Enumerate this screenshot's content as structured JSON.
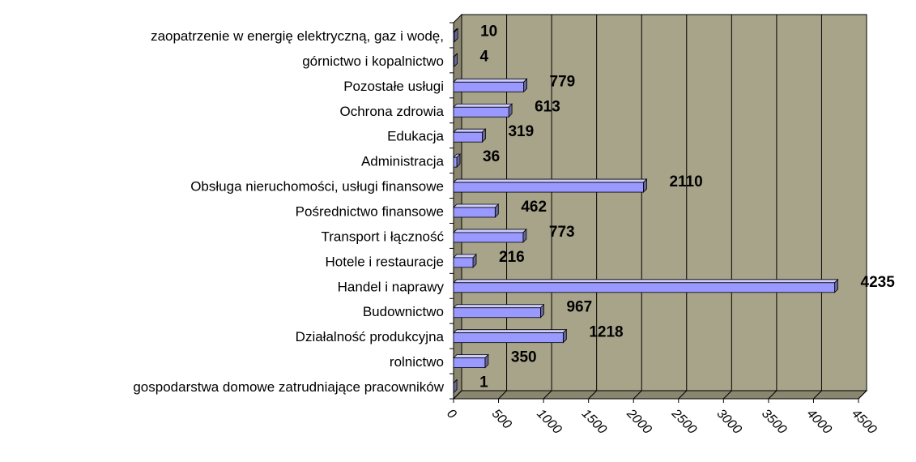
{
  "chart_data": {
    "type": "bar3d_horizontal",
    "categories": [
      "zaopatrzenie w energię elektryczną, gaz i wodę,",
      "górnictwo i kopalnictwo",
      "Pozostałe usługi",
      "Ochrona zdrowia",
      "Edukacja",
      "Administracja",
      "Obsługa nieruchomości, usługi finansowe",
      "Pośrednictwo finansowe",
      "Transport i łączność",
      "Hotele i restauracje",
      "Handel i naprawy",
      "Budownictwo",
      "Działalność produkcyjna",
      "rolnictwo",
      "gospodarstwa domowe zatrudniające pracowników"
    ],
    "values": [
      10,
      4,
      779,
      613,
      319,
      36,
      2110,
      462,
      773,
      216,
      4235,
      967,
      1218,
      350,
      1
    ],
    "color": "#9999ff",
    "xlim": [
      0,
      4500
    ],
    "xticks": [
      0,
      500,
      1000,
      1500,
      2000,
      2500,
      3000,
      3500,
      4000,
      4500
    ],
    "grid": true
  }
}
